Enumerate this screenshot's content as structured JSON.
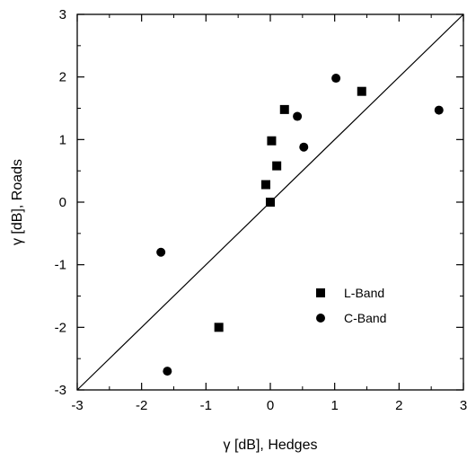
{
  "chart_data": {
    "type": "scatter",
    "xlabel": "γ [dB],  Hedges",
    "ylabel": "γ [dB], Roads",
    "xlim": [
      -3,
      3
    ],
    "ylim": [
      -3,
      3
    ],
    "x_ticks": [
      "-3",
      "-2",
      "-1",
      "0",
      "1",
      "2",
      "3"
    ],
    "y_ticks": [
      "-3",
      "-2",
      "-1",
      "0",
      "1",
      "2",
      "3"
    ],
    "grid": false,
    "reference_line": {
      "from": [
        -3,
        -3
      ],
      "to": [
        3,
        3
      ]
    },
    "legend_position": "lower-right",
    "series": [
      {
        "name": "L-Band",
        "marker": "square",
        "color": "#000000",
        "points": [
          {
            "x": -0.8,
            "y": -2.0
          },
          {
            "x": 0.0,
            "y": 0.0
          },
          {
            "x": -0.07,
            "y": 0.28
          },
          {
            "x": 0.1,
            "y": 0.58
          },
          {
            "x": 0.02,
            "y": 0.98
          },
          {
            "x": 0.22,
            "y": 1.48
          },
          {
            "x": 1.42,
            "y": 1.77
          }
        ]
      },
      {
        "name": "C-Band",
        "marker": "circle",
        "color": "#000000",
        "points": [
          {
            "x": -1.6,
            "y": -2.7
          },
          {
            "x": -1.7,
            "y": -0.8
          },
          {
            "x": 0.52,
            "y": 0.88
          },
          {
            "x": 0.42,
            "y": 1.37
          },
          {
            "x": 1.02,
            "y": 1.98
          },
          {
            "x": 2.62,
            "y": 1.47
          }
        ]
      }
    ]
  }
}
